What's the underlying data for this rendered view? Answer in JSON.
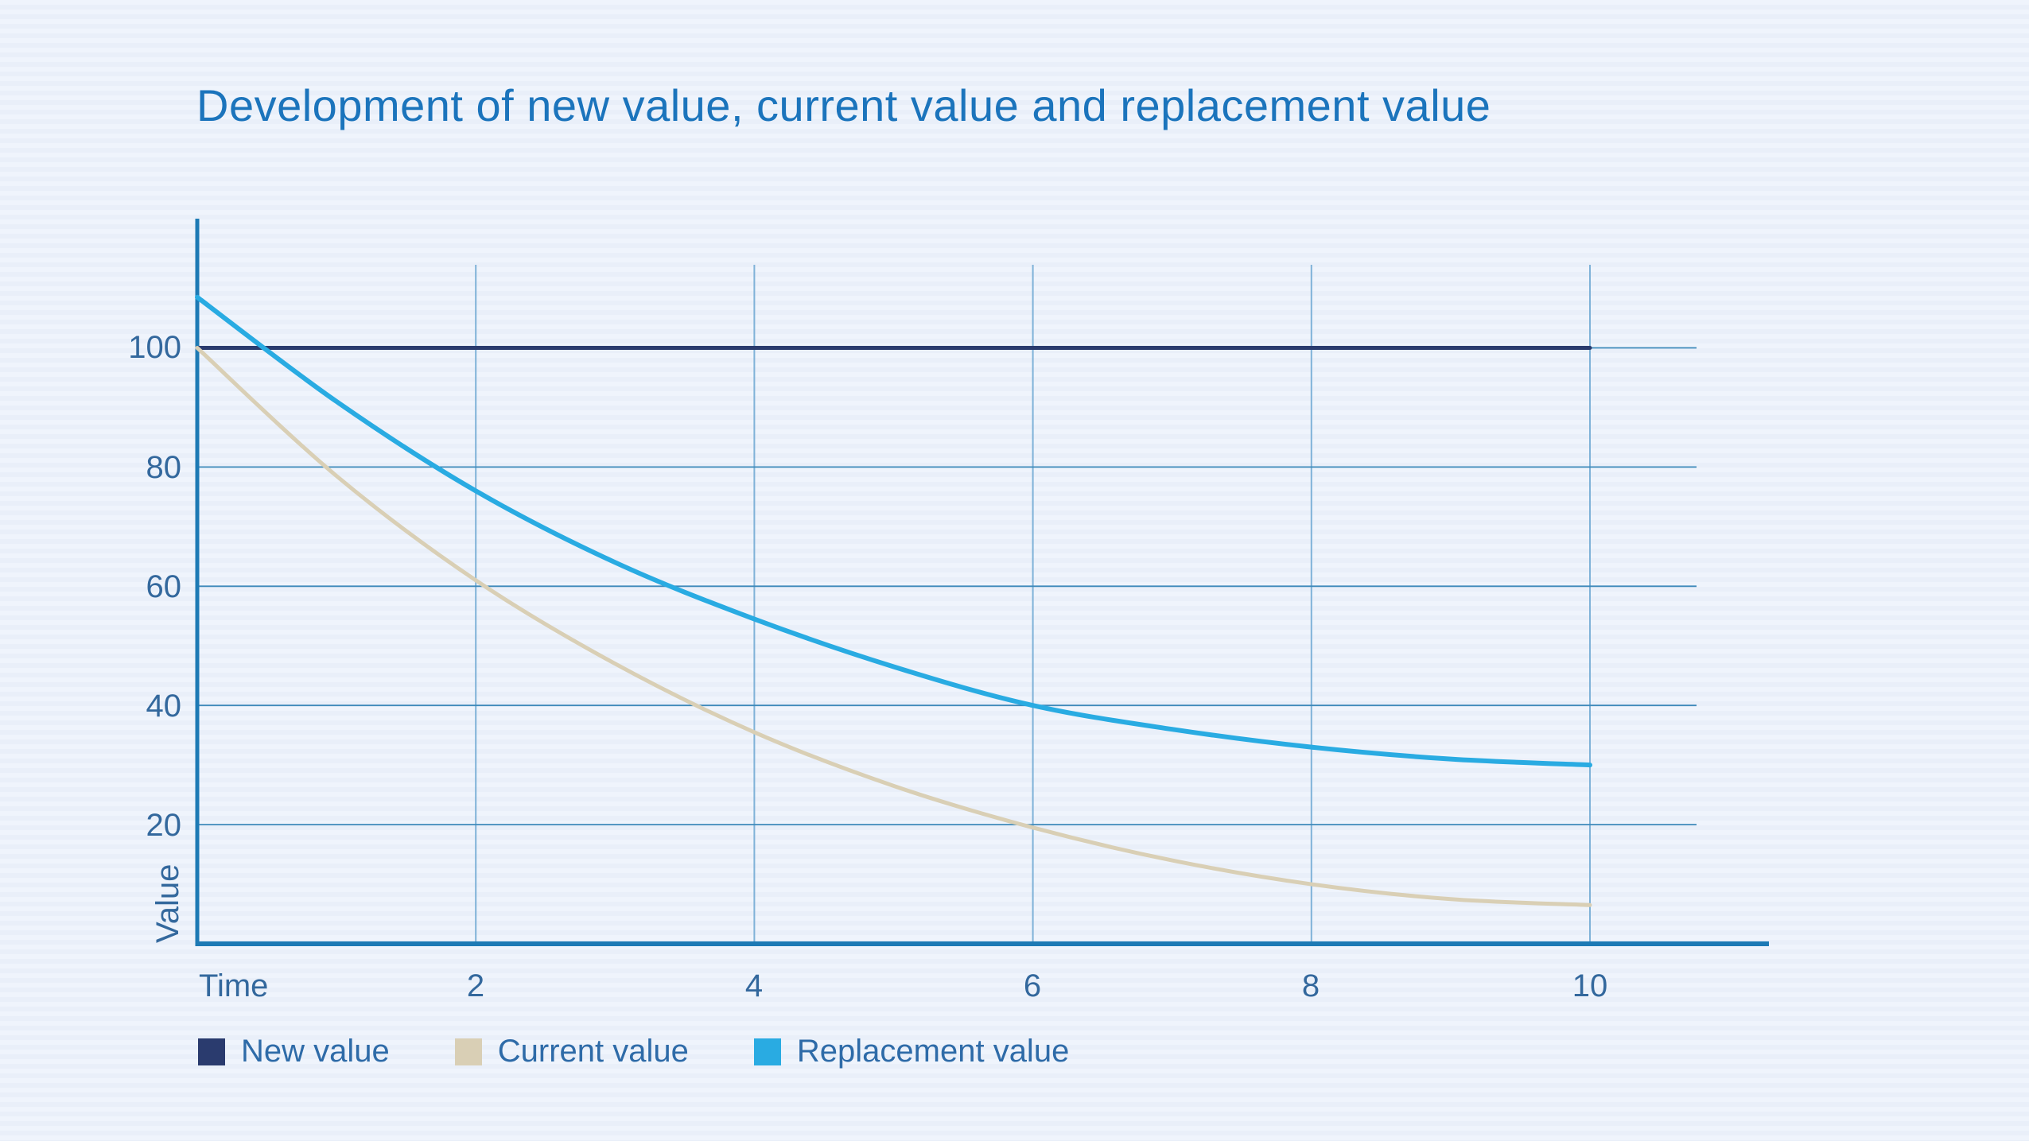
{
  "title": "Development of new value, current value and replacement value",
  "colors": {
    "background": "#edf3fb",
    "title": "#1b74bc",
    "axis_line": "#1d7ab5",
    "grid_horizontal": "#3d89ba",
    "grid_vertical": "#7fb2d8",
    "tick_label": "#33689d",
    "legend_label": "#2e6ba8"
  },
  "chart_data": {
    "type": "line",
    "title": "Development of new value, current value and replacement value",
    "xlabel": "Time",
    "ylabel": "Value",
    "x": [
      0,
      1,
      2,
      3,
      4,
      5,
      6,
      7,
      8,
      9,
      10
    ],
    "series": [
      {
        "name": "New value",
        "color": "#2a3b6e",
        "values": [
          100,
          100,
          100,
          100,
          100,
          100,
          100,
          100,
          100,
          100,
          100
        ]
      },
      {
        "name": "Current value",
        "color": "#d9cfb5",
        "values": [
          100,
          78.5,
          61,
          47,
          35.5,
          26.5,
          19.5,
          14,
          10,
          7.5,
          6.5
        ]
      },
      {
        "name": "Replacement value",
        "color": "#29abe2",
        "values": [
          108.5,
          91,
          76,
          64,
          54.5,
          46.5,
          40,
          36,
          33,
          31,
          30
        ]
      }
    ],
    "x_ticks": [
      2,
      4,
      6,
      8,
      10
    ],
    "x_tick_labels": [
      "2",
      "4",
      "6",
      "8",
      "10"
    ],
    "y_ticks": [
      20,
      40,
      60,
      80,
      100
    ],
    "y_tick_labels": [
      "20",
      "40",
      "60",
      "80",
      "100"
    ],
    "xlim": [
      0,
      11.3
    ],
    "ylim": [
      0,
      122
    ],
    "grid": true,
    "legend_position": "bottom"
  }
}
